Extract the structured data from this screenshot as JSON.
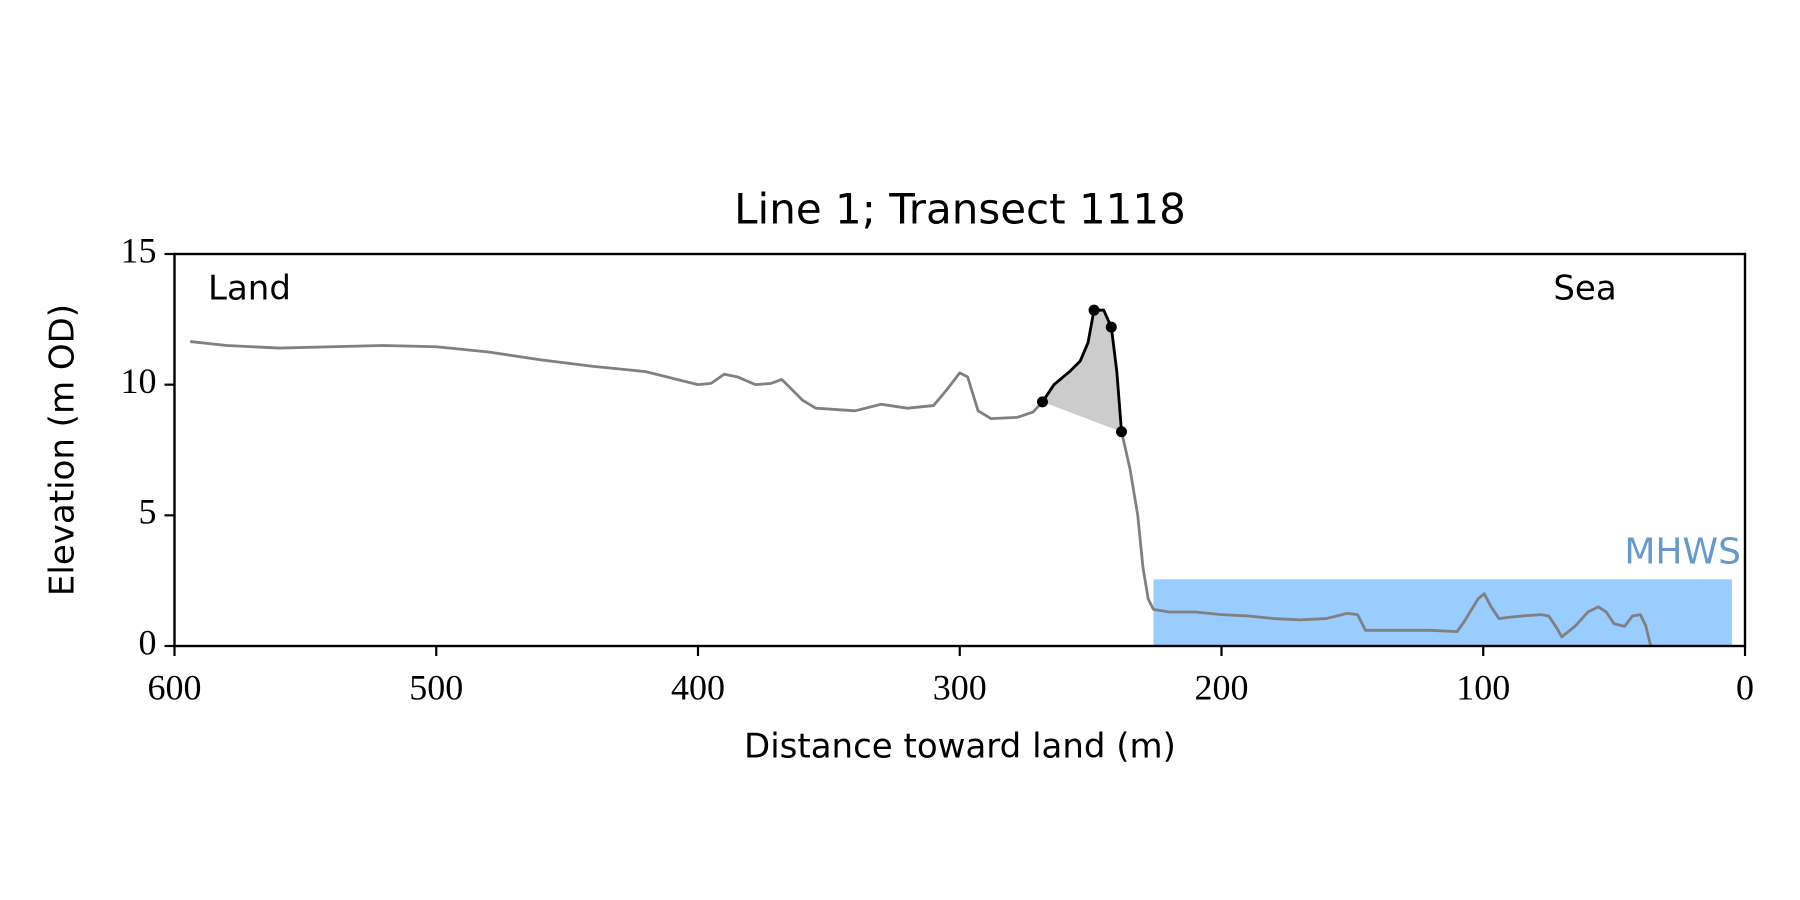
{
  "chart_data": {
    "type": "line",
    "title": "Line 1; Transect 1118",
    "xlabel": "Distance toward land (m)",
    "ylabel": "Elevation (m OD)",
    "annotations": [
      "Land",
      "Sea"
    ],
    "xlim": [
      600,
      0
    ],
    "ylim": [
      0,
      15
    ],
    "xticks": [
      600,
      500,
      400,
      300,
      200,
      100,
      0
    ],
    "yticks": [
      0,
      5,
      10,
      15
    ],
    "mhws": {
      "label": "MHWS",
      "level": 2.55,
      "x": [
        226,
        5
      ],
      "color": "#99ccff",
      "label_color": "#6699cc"
    },
    "series": [
      {
        "color": "#808080",
        "style": "line",
        "x": [
          594,
          580,
          560,
          540,
          520,
          500,
          480,
          460,
          440,
          420,
          410,
          400,
          395,
          390,
          385,
          378,
          372,
          368,
          365,
          360,
          355,
          340,
          330,
          320,
          310,
          305,
          300,
          297,
          293,
          288,
          278,
          272,
          268.4,
          264,
          258,
          254,
          251,
          248.7,
          245,
          242.1,
          240,
          238.2,
          235,
          232,
          230,
          228,
          226,
          220,
          210,
          200,
          190,
          180,
          170,
          160,
          152,
          148,
          145,
          135,
          120,
          110,
          107.5,
          102,
          99.6,
          97,
          94,
          90,
          85,
          78,
          75,
          72,
          70,
          65,
          60,
          56,
          53,
          50,
          46,
          43,
          40,
          38,
          36
        ],
        "values": [
          11.65,
          11.5,
          11.4,
          11.45,
          11.5,
          11.45,
          11.25,
          10.95,
          10.7,
          10.5,
          10.25,
          10.0,
          10.05,
          10.4,
          10.3,
          10.0,
          10.05,
          10.2,
          9.9,
          9.4,
          9.1,
          9.0,
          9.25,
          9.1,
          9.2,
          9.8,
          10.45,
          10.3,
          9.0,
          8.7,
          8.75,
          8.95,
          9.34,
          10.0,
          10.5,
          10.9,
          11.6,
          12.85,
          12.85,
          12.2,
          10.5,
          8.2,
          6.8,
          5.0,
          3.0,
          1.8,
          1.4,
          1.3,
          1.3,
          1.2,
          1.15,
          1.05,
          1.0,
          1.05,
          1.25,
          1.2,
          0.6,
          0.6,
          0.6,
          0.55,
          0.9,
          1.8,
          2.0,
          1.5,
          1.05,
          1.1,
          1.15,
          1.2,
          1.15,
          0.7,
          0.35,
          0.75,
          1.3,
          1.5,
          1.3,
          0.85,
          0.75,
          1.15,
          1.2,
          0.8,
          0
        ]
      },
      {
        "color": "#000000",
        "style": "line",
        "fill": "#cccccc",
        "x": [
          268.4,
          264,
          258,
          254,
          251,
          248.7,
          245,
          242.1,
          240,
          238.2
        ],
        "values": [
          9.34,
          10.0,
          10.5,
          10.9,
          11.6,
          12.85,
          12.85,
          12.2,
          10.5,
          8.2
        ]
      },
      {
        "color": "#000000",
        "style": "points",
        "x": [
          268.4,
          248.7,
          242.1,
          238.2
        ],
        "values": [
          9.34,
          12.85,
          12.2,
          8.2
        ]
      }
    ]
  }
}
